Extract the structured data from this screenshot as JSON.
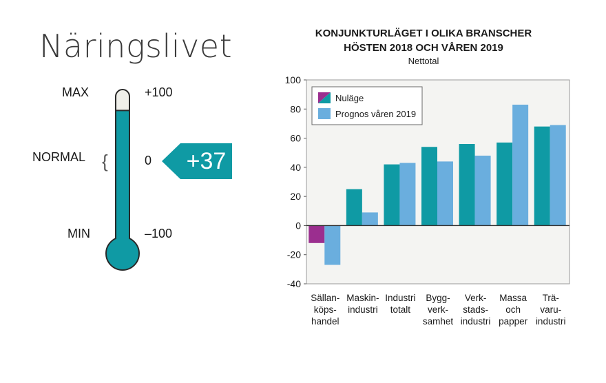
{
  "page": {
    "title": "Näringslivet"
  },
  "thermometer": {
    "max_label": "MAX",
    "normal_label": "NORMAL",
    "min_label": "MIN",
    "max_value": "+100",
    "normal_value": "0",
    "min_value": "–100",
    "brace": "{",
    "current_value": "+37",
    "level": 37,
    "fill_color": "#0f9aa4",
    "empty_color": "#efefea",
    "arrow_color": "#0f9aa4"
  },
  "chart_data": {
    "type": "bar",
    "title_line1": "KONJUNKTURLÄGET I OLIKA BRANSCHER",
    "title_line2": "HÖSTEN 2018 OCH VÅREN 2019",
    "subtitle": "Nettotal",
    "ylim": [
      -40,
      100
    ],
    "yticks": [
      "100",
      "80",
      "60",
      "40",
      "20",
      "0",
      "-20",
      "-40"
    ],
    "ytick_values": [
      100,
      80,
      60,
      40,
      20,
      0,
      -20,
      -40
    ],
    "categories": [
      [
        "Sällan-",
        "köps-",
        "handel"
      ],
      [
        "Maskin-",
        "industri"
      ],
      [
        "Industri",
        "totalt"
      ],
      [
        "Bygg-",
        "verk-",
        "samhet"
      ],
      [
        "Verk-",
        "stads-",
        "industri"
      ],
      [
        "Massa",
        "och",
        "papper"
      ],
      [
        "Trä-",
        "varu-",
        "industri"
      ]
    ],
    "series": [
      {
        "name": "Nuläge",
        "values": [
          -12,
          25,
          42,
          54,
          56,
          57,
          68
        ]
      },
      {
        "name": "Prognos våren 2019",
        "values": [
          -27,
          9,
          43,
          44,
          48,
          83,
          69
        ]
      }
    ],
    "legend_position": "top-left",
    "colors": {
      "nulage": "#0f9aa4",
      "nulage_negative": "#9b2e8f",
      "prognos": "#6aaede",
      "plot_bg": "#f4f4f2"
    }
  }
}
